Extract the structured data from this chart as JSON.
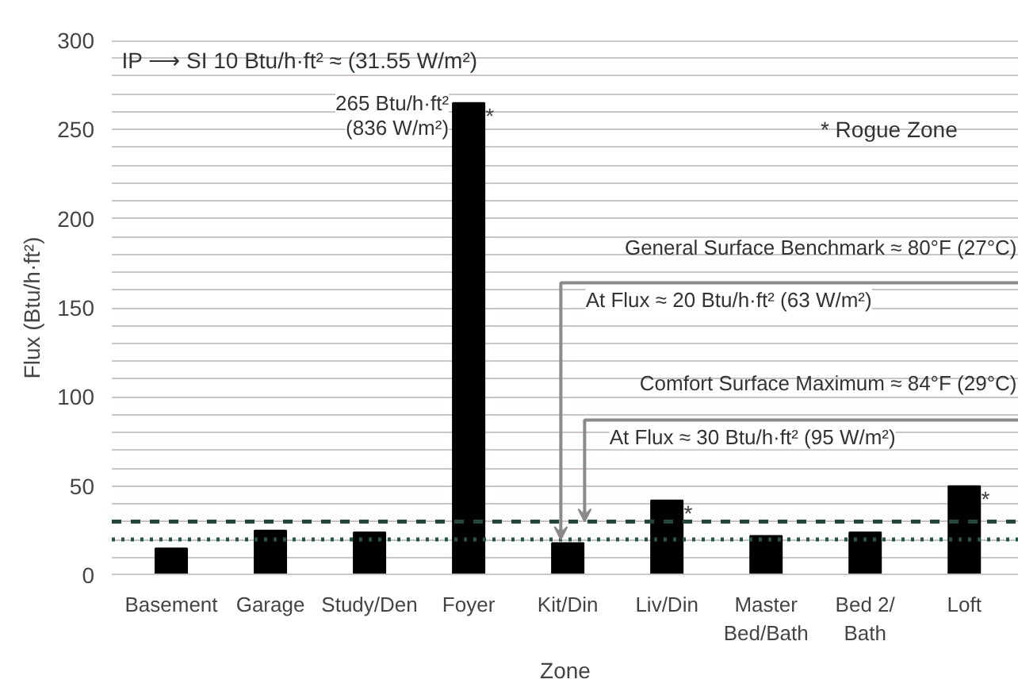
{
  "chart_data": {
    "type": "bar",
    "xlabel": "Zone",
    "ylabel": "Flux (Btu/h·ft²)",
    "categories": [
      "Basement",
      "Garage",
      "Study/Den",
      "Foyer",
      "Kit/Din",
      "Liv/Din",
      "Master Bed/Bath",
      "Bed 2/ Bath",
      "Loft"
    ],
    "values": [
      15,
      25,
      24,
      265,
      18,
      42,
      22,
      24,
      50
    ],
    "color": "#000000",
    "ylim": [
      0,
      300
    ],
    "yticks": [
      0,
      {
        "value": 10,
        "label": null
      },
      {
        "value": 20,
        "label": null
      },
      {
        "value": 30,
        "label": null
      },
      {
        "value": 40,
        "label": null
      },
      50,
      {
        "value": 60,
        "label": null
      },
      {
        "value": 70,
        "label": null
      },
      {
        "value": 80,
        "label": null
      },
      {
        "value": 90,
        "label": null
      },
      100,
      {
        "value": 110,
        "label": null
      },
      {
        "value": 120,
        "label": null
      },
      {
        "value": 130,
        "label": null
      },
      {
        "value": 140,
        "label": null
      },
      150,
      {
        "value": 160,
        "label": null
      },
      {
        "value": 170,
        "label": null
      },
      {
        "value": 180,
        "label": null
      },
      {
        "value": 190,
        "label": null
      },
      200,
      {
        "value": 210,
        "label": null
      },
      {
        "value": 220,
        "label": null
      },
      {
        "value": 230,
        "label": null
      },
      {
        "value": 240,
        "label": null
      },
      250,
      {
        "value": 260,
        "label": null
      },
      {
        "value": 270,
        "label": null
      },
      {
        "value": 280,
        "label": null
      },
      {
        "value": 290,
        "label": null
      },
      300
    ],
    "grid": "y",
    "ref_lines": [
      {
        "axis": "y",
        "value": 20,
        "label": "General Surface Benchmark ≈ 80°F (27°C)\nAt Flux ≈ 20 Btu/h·ft² (63 W/m²)",
        "color": "#1f5a40",
        "line_style": "dotted"
      },
      {
        "axis": "y",
        "value": 30,
        "label": "Comfort Surface Maximum ≈ 84°F (29°C)\nAt Flux ≈ 30 Btu/h·ft² (95 W/m²)",
        "color": "#1f4a3a",
        "line_style": "dashed"
      }
    ],
    "annotations": [
      "IP ⟶ SI 10 Btu/h·ft² ≈ (31.55 W/m²)",
      "* Rogue Zone",
      {
        "text": "265 Btu/h·ft²\n(836 W/m²)",
        "x": "Foyer",
        "y": 265
      },
      {
        "text": "*",
        "x": "Foyer",
        "y": 265
      },
      {
        "text": "*",
        "x": "Liv/Din",
        "y": 42
      },
      {
        "text": "*",
        "x": "Loft",
        "y": 50
      }
    ]
  }
}
